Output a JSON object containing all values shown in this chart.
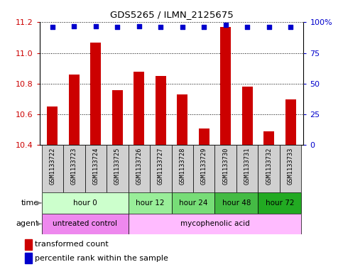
{
  "title": "GDS5265 / ILMN_2125675",
  "samples": [
    "GSM1133722",
    "GSM1133723",
    "GSM1133724",
    "GSM1133725",
    "GSM1133726",
    "GSM1133727",
    "GSM1133728",
    "GSM1133729",
    "GSM1133730",
    "GSM1133731",
    "GSM1133732",
    "GSM1133733"
  ],
  "transformed_count": [
    10.65,
    10.86,
    11.07,
    10.76,
    10.88,
    10.85,
    10.73,
    10.51,
    11.17,
    10.78,
    10.49,
    10.7
  ],
  "percentile_rank": [
    96,
    97,
    97,
    96,
    97,
    96,
    96,
    96,
    98,
    96,
    96,
    96
  ],
  "percentile_scale_max": 100,
  "ylim_left": [
    10.4,
    11.2
  ],
  "yticks_left": [
    10.4,
    10.6,
    10.8,
    11.0,
    11.2
  ],
  "yticks_right": [
    0,
    25,
    50,
    75,
    100
  ],
  "bar_color": "#cc0000",
  "dot_color": "#0000cc",
  "time_groups": [
    {
      "label": "hour 0",
      "start": 0,
      "end": 4,
      "color": "#ccffcc"
    },
    {
      "label": "hour 12",
      "start": 4,
      "end": 6,
      "color": "#99ee99"
    },
    {
      "label": "hour 24",
      "start": 6,
      "end": 8,
      "color": "#77dd77"
    },
    {
      "label": "hour 48",
      "start": 8,
      "end": 10,
      "color": "#44bb44"
    },
    {
      "label": "hour 72",
      "start": 10,
      "end": 12,
      "color": "#22aa22"
    }
  ],
  "agent_groups": [
    {
      "label": "untreated control",
      "start": 0,
      "end": 4,
      "color": "#ee88ee"
    },
    {
      "label": "mycophenolic acid",
      "start": 4,
      "end": 12,
      "color": "#ffbbff"
    }
  ],
  "legend_bar_label": "transformed count",
  "legend_dot_label": "percentile rank within the sample",
  "left_axis_color": "#cc0000",
  "right_axis_color": "#0000cc",
  "sample_cell_color": "#d0d0d0",
  "bar_bottom": 10.4
}
